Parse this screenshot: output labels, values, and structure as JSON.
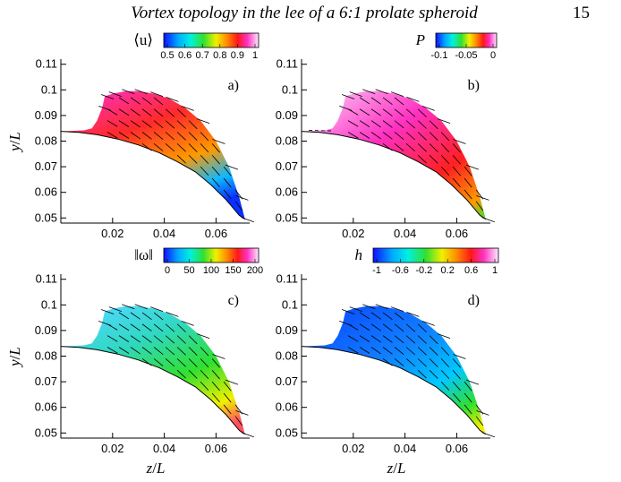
{
  "header": {
    "running_title": "Vortex topology in the lee of a 6:1 prolate spheroid",
    "page_number": "15"
  },
  "axes": {
    "x_ticks": [
      "0.02",
      "0.04",
      "0.06"
    ],
    "y_ticks": [
      "0.11",
      "0.1",
      "0.09",
      "0.08",
      "0.07",
      "0.06",
      "0.05"
    ],
    "x_label_num": "z",
    "x_label_den": "L",
    "y_label_num": "y",
    "y_label_den": "L"
  },
  "panels": [
    {
      "label": "a)",
      "colorbar": {
        "title": "⟨u⟩",
        "ticks": [
          "0.5",
          "0.6",
          "0.7",
          "0.8",
          "0.9",
          "1"
        ]
      }
    },
    {
      "label": "b)",
      "colorbar": {
        "title": "P",
        "ticks": [
          "-0.1",
          "-0.05",
          "0"
        ]
      }
    },
    {
      "label": "c)",
      "colorbar": {
        "title": "‖ω‖",
        "ticks": [
          "0",
          "50",
          "100",
          "150",
          "200"
        ]
      }
    },
    {
      "label": "d)",
      "colorbar": {
        "title": "h",
        "ticks": [
          "-1",
          "-0.6",
          "-0.2",
          "0.2",
          "0.6",
          "1"
        ]
      }
    }
  ],
  "chart_data": [
    {
      "type": "heatmap",
      "panel": "a)",
      "quantity": "⟨u⟩",
      "xlim": [
        0,
        0.073
      ],
      "ylim": [
        0.048,
        0.112
      ],
      "x_ticks": [
        0.02,
        0.04,
        0.06
      ],
      "y_ticks": [
        0.05,
        0.06,
        0.07,
        0.08,
        0.09,
        0.1,
        0.11
      ],
      "colorbar_range": [
        0.45,
        1.0
      ]
    },
    {
      "type": "heatmap",
      "panel": "b)",
      "quantity": "P",
      "xlim": [
        0,
        0.073
      ],
      "ylim": [
        0.048,
        0.112
      ],
      "x_ticks": [
        0.02,
        0.04,
        0.06
      ],
      "y_ticks": [
        0.05,
        0.06,
        0.07,
        0.08,
        0.09,
        0.1,
        0.11
      ],
      "colorbar_range": [
        -0.12,
        0
      ]
    },
    {
      "type": "heatmap",
      "panel": "c)",
      "quantity": "‖ω‖",
      "xlim": [
        0,
        0.073
      ],
      "ylim": [
        0.048,
        0.112
      ],
      "x_ticks": [
        0.02,
        0.04,
        0.06
      ],
      "y_ticks": [
        0.05,
        0.06,
        0.07,
        0.08,
        0.09,
        0.1,
        0.11
      ],
      "colorbar_range": [
        0,
        200
      ]
    },
    {
      "type": "heatmap",
      "panel": "d)",
      "quantity": "h",
      "xlim": [
        0,
        0.073
      ],
      "ylim": [
        0.048,
        0.112
      ],
      "x_ticks": [
        0.02,
        0.04,
        0.06
      ],
      "y_ticks": [
        0.05,
        0.06,
        0.07,
        0.08,
        0.09,
        0.1,
        0.11
      ],
      "colorbar_range": [
        -1,
        1
      ]
    }
  ]
}
